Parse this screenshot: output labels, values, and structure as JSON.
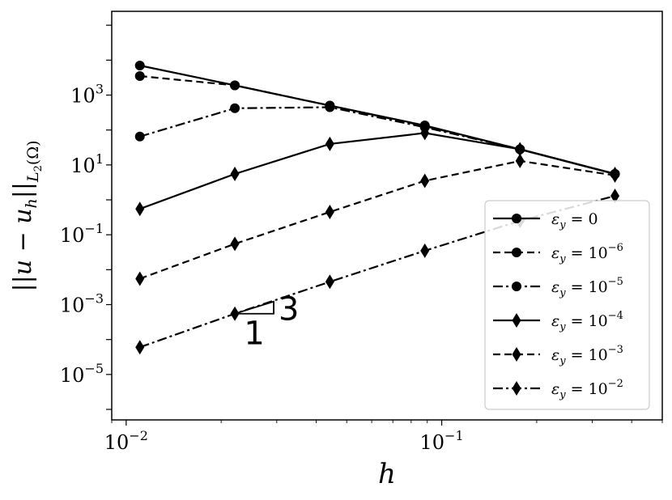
{
  "chart_data": {
    "type": "line",
    "xscale": "log",
    "yscale": "log",
    "xlabel": "h",
    "ylabel": "||u − u_h||_{L2(Ω)}",
    "xlim": [
      0.009,
      0.5
    ],
    "ylim": [
      5e-07,
      250000
    ],
    "x_ticks": [
      {
        "value": 0.01,
        "base": "10",
        "exp": "−2"
      },
      {
        "value": 0.1,
        "base": "10",
        "exp": "−1"
      }
    ],
    "y_ticks": [
      {
        "value": 1e-05,
        "base": "10",
        "exp": "−5"
      },
      {
        "value": 0.001,
        "base": "10",
        "exp": "−3"
      },
      {
        "value": 0.1,
        "base": "10",
        "exp": "−1"
      },
      {
        "value": 10,
        "base": "10",
        "exp": "1"
      },
      {
        "value": 1000,
        "base": "10",
        "exp": "3"
      }
    ],
    "x": [
      0.01105,
      0.0221,
      0.0442,
      0.0884,
      0.177,
      0.354
    ],
    "series": [
      {
        "name": "ε_y = 0",
        "marker": "circle",
        "dash": "solid",
        "values": [
          7000,
          1900,
          500,
          135,
          28,
          5.5
        ]
      },
      {
        "name": "ε_y = 10^−6",
        "marker": "circle",
        "dash": "dashed",
        "values": [
          3500,
          1900,
          500,
          130,
          28,
          5.5
        ]
      },
      {
        "name": "ε_y = 10^−5",
        "marker": "circle",
        "dash": "dashdot",
        "values": [
          65,
          420,
          450,
          120,
          28,
          5.5
        ]
      },
      {
        "name": "ε_y = 10^−4",
        "marker": "diamond",
        "dash": "solid",
        "values": [
          0.55,
          5.5,
          40,
          82,
          28,
          5.5
        ]
      },
      {
        "name": "ε_y = 10^−3",
        "marker": "diamond",
        "dash": "dashed",
        "values": [
          0.0055,
          0.055,
          0.45,
          3.5,
          13,
          5
        ]
      },
      {
        "name": "ε_y = 10^−2",
        "marker": "diamond",
        "dash": "dashdot",
        "values": [
          6e-05,
          0.00055,
          0.0045,
          0.035,
          0.25,
          1.3
        ]
      }
    ],
    "slope_triangle": {
      "run": "1",
      "rise": "3"
    },
    "legend_position": "lower right",
    "grid": false
  }
}
